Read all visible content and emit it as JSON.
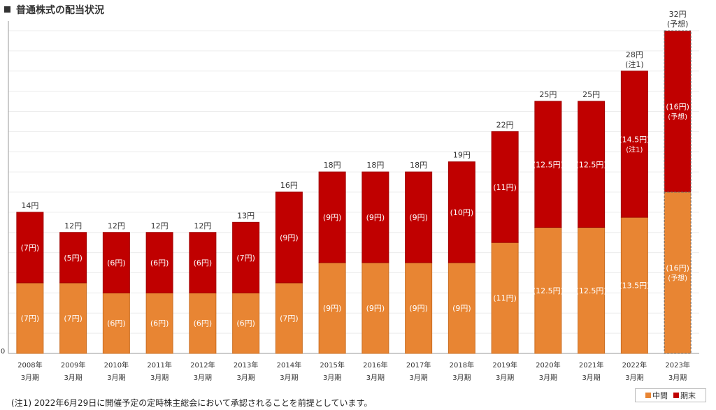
{
  "header": {
    "title": "普通株式の配当状況"
  },
  "note": "(注1) 2022年6月29日に開催予定の定時株主総会において承認されることを前提としています。",
  "chart_data": {
    "type": "bar",
    "stacked": true,
    "title": "普通株式の配当状況",
    "categories": [
      [
        "2008年",
        "3月期"
      ],
      [
        "2009年",
        "3月期"
      ],
      [
        "2010年",
        "3月期"
      ],
      [
        "2011年",
        "3月期"
      ],
      [
        "2012年",
        "3月期"
      ],
      [
        "2013年",
        "3月期"
      ],
      [
        "2014年",
        "3月期"
      ],
      [
        "2015年",
        "3月期"
      ],
      [
        "2016年",
        "3月期"
      ],
      [
        "2017年",
        "3月期"
      ],
      [
        "2018年",
        "3月期"
      ],
      [
        "2019年",
        "3月期"
      ],
      [
        "2020年",
        "3月期"
      ],
      [
        "2021年",
        "3月期"
      ],
      [
        "2022年",
        "3月期"
      ],
      [
        "2023年",
        "3月期"
      ]
    ],
    "series": [
      {
        "name": "中間",
        "color": "#E88533",
        "values": [
          7,
          7,
          6,
          6,
          6,
          6,
          7,
          9,
          9,
          9,
          9,
          11,
          12.5,
          12.5,
          13.5,
          16
        ],
        "labels": [
          [
            "(7円)"
          ],
          [
            "(7円)"
          ],
          [
            "(6円)"
          ],
          [
            "(6円)"
          ],
          [
            "(6円)"
          ],
          [
            "(6円)"
          ],
          [
            "(7円)"
          ],
          [
            "(9円)"
          ],
          [
            "(9円)"
          ],
          [
            "(9円)"
          ],
          [
            "(9円)"
          ],
          [
            "(11円)"
          ],
          [
            "(12.5円)"
          ],
          [
            "(12.5円)"
          ],
          [
            "(13.5円)"
          ],
          [
            "(16円)",
            "(予想)"
          ]
        ]
      },
      {
        "name": "期末",
        "color": "#C00000",
        "values": [
          7,
          5,
          6,
          6,
          6,
          7,
          9,
          9,
          9,
          9,
          10,
          11,
          12.5,
          12.5,
          14.5,
          16
        ],
        "labels": [
          [
            "(7円)"
          ],
          [
            "(5円)"
          ],
          [
            "(6円)"
          ],
          [
            "(6円)"
          ],
          [
            "(6円)"
          ],
          [
            "(7円)"
          ],
          [
            "(9円)"
          ],
          [
            "(9円)"
          ],
          [
            "(9円)"
          ],
          [
            "(9円)"
          ],
          [
            "(10円)"
          ],
          [
            "(11円)"
          ],
          [
            "(12.5円)"
          ],
          [
            "(12.5円)"
          ],
          [
            "(14.5円)",
            "(注1)"
          ],
          [
            "(16円)",
            "(予想)"
          ]
        ]
      }
    ],
    "totals": [
      [
        "14円"
      ],
      [
        "12円"
      ],
      [
        "12円"
      ],
      [
        "12円"
      ],
      [
        "12円"
      ],
      [
        "13円"
      ],
      [
        "16円"
      ],
      [
        "18円"
      ],
      [
        "18円"
      ],
      [
        "18円"
      ],
      [
        "19円"
      ],
      [
        "22円"
      ],
      [
        "25円"
      ],
      [
        "25円"
      ],
      [
        "28円",
        "(注1)"
      ],
      [
        "32円",
        "(予想)"
      ]
    ],
    "forecast_index": 15,
    "y_tick_label": "0",
    "ylim": [
      0,
      32
    ],
    "grid": true,
    "legend": "bottom-right"
  }
}
